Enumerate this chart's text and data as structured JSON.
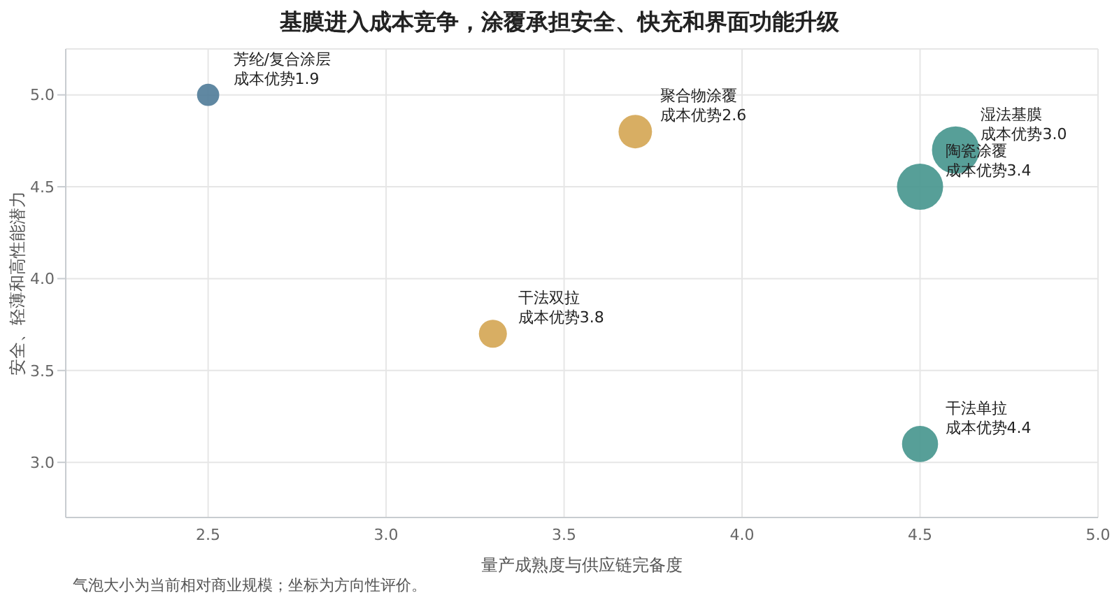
{
  "chart_data": {
    "type": "bubble",
    "title": "基膜进入成本竞争，涂覆承担安全、快充和界面功能升级",
    "xlabel": "量产成熟度与供应链完备度",
    "ylabel": "安全、轻薄和高性能潜力",
    "x": [
      2.5,
      3.7,
      4.6,
      4.5,
      3.3,
      4.5
    ],
    "values": [
      5.0,
      4.8,
      4.7,
      4.5,
      3.7,
      3.1
    ],
    "sizes": [
      0.22,
      0.5,
      1,
      0.95,
      0.35,
      0.58
    ],
    "colors": [
      "#4f7b98",
      "#d4a552",
      "#45958d",
      "#45958d",
      "#d4a552",
      "#45958d"
    ],
    "annotations": [
      {
        "text": "芳纶/复合涂层",
        "x": 2.5,
        "y": 5.0
      },
      {
        "text": "成本优势1.9",
        "x": 2.5,
        "y": 5.0
      },
      {
        "text": "聚合物涂覆",
        "x": 3.7,
        "y": 4.8
      },
      {
        "text": "成本优势2.6",
        "x": 3.7,
        "y": 4.8
      },
      {
        "text": "湿法基膜",
        "x": 4.6,
        "y": 4.7
      },
      {
        "text": "成本优势3.0",
        "x": 4.6,
        "y": 4.7
      },
      {
        "text": "陶瓷涂覆",
        "x": 4.5,
        "y": 4.5
      },
      {
        "text": "成本优势3.4",
        "x": 4.5,
        "y": 4.5
      },
      {
        "text": "干法双拉",
        "x": 3.3,
        "y": 3.7
      },
      {
        "text": "成本优势3.8",
        "x": 3.3,
        "y": 3.7
      },
      {
        "text": "干法单拉",
        "x": 4.5,
        "y": 3.1
      },
      {
        "text": "成本优势4.4",
        "x": 4.5,
        "y": 3.1
      },
      "气泡大小为当前相对商业规模；坐标为方向性评价。"
    ],
    "xlim": [
      2.1,
      5.0
    ],
    "xticks": [
      2.5,
      {
        "value": 3,
        "label": "3.0"
      },
      3.5,
      {
        "value": 4,
        "label": "4.0"
      },
      4.5,
      {
        "value": 5,
        "label": "5.0"
      }
    ],
    "ylim": [
      2.7,
      5.25
    ],
    "yticks": [
      {
        "value": 3,
        "label": "3.0"
      },
      3.5,
      {
        "value": 4,
        "label": "4.0"
      },
      4.5,
      {
        "value": 5,
        "label": "5.0"
      }
    ],
    "grid": true
  }
}
